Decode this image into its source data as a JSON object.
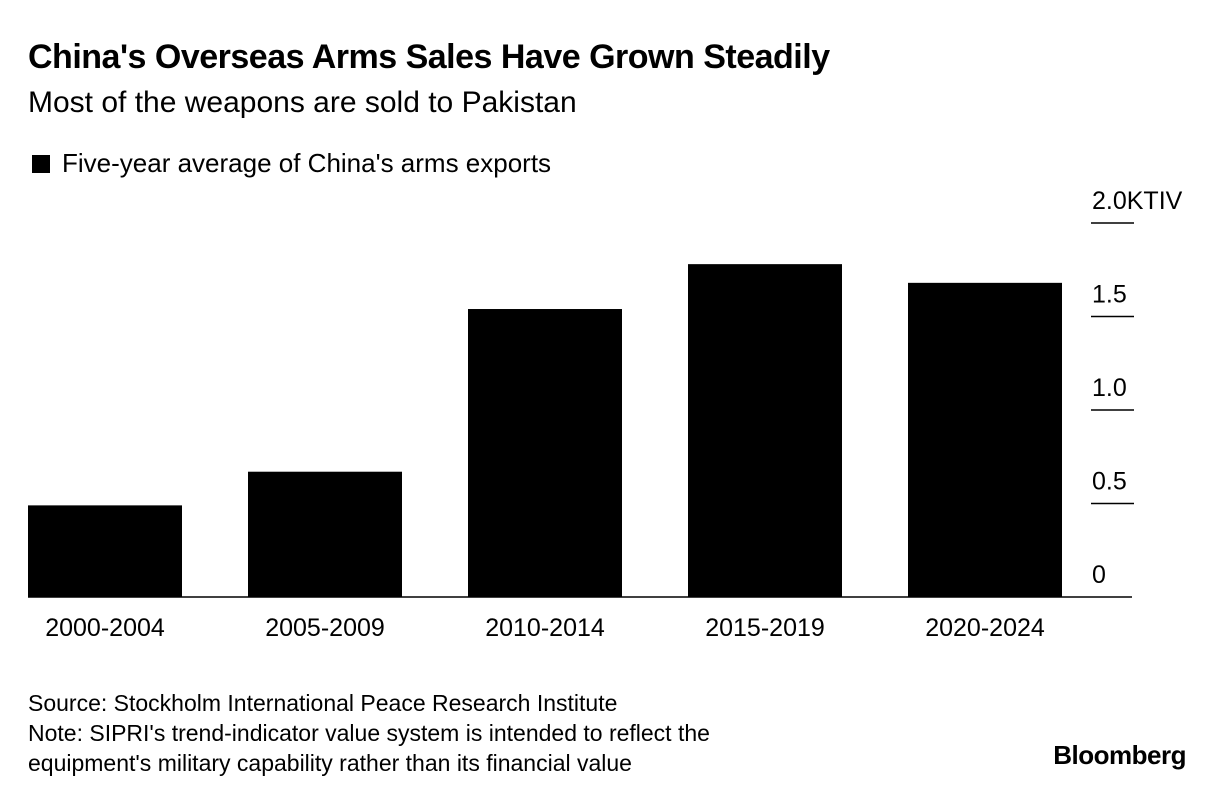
{
  "title": "China's Overseas Arms Sales Have Grown Steadily",
  "subtitle": "Most of the weapons are sold to Pakistan",
  "legend_label": "Five-year average of China's arms exports",
  "source": "Source: Stockholm International Peace Research Institute",
  "note_line1": "Note: SIPRI's trend-indicator value system is intended to reflect the",
  "note_line2": "equipment's military capability rather than its financial value",
  "brand": "Bloomberg",
  "chart_data": {
    "type": "bar",
    "title": "China's Overseas Arms Sales Have Grown Steadily",
    "subtitle": "Most of the weapons are sold to Pakistan",
    "categories": [
      "2000-2004",
      "2005-2009",
      "2010-2014",
      "2015-2019",
      "2020-2024"
    ],
    "series": [
      {
        "name": "Five-year average of China's arms exports",
        "values": [
          0.49,
          0.67,
          1.54,
          1.78,
          1.68
        ]
      }
    ],
    "ylim": [
      0,
      2.0
    ],
    "yticks": [
      "0",
      "0.5",
      "1.0",
      "1.5",
      "2.0KTIV"
    ],
    "y_axis_side": "right",
    "grid": false,
    "legend": "top-left",
    "bar_color": "#000000"
  }
}
